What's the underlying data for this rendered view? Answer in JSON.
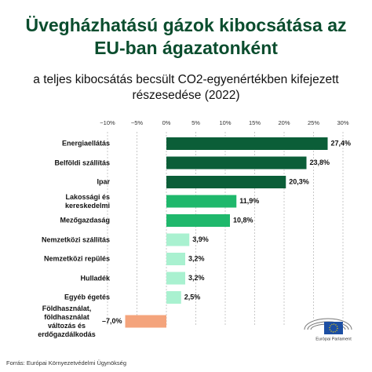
{
  "chart_data": {
    "type": "bar",
    "orientation": "horizontal",
    "title": "Üvegházhatású gázok kibocsátása az EU-ban ágazatonként",
    "subtitle": "a teljes kibocsátás becsült CO2-egyenértékben kifejezett részesedése (2022)",
    "categories": [
      "Energiaellátás",
      "Belföldi szállítás",
      "Ipar",
      "Lakossági és kereskedelmi",
      "Mezőgazdaság",
      "Nemzetközi szállítás",
      "Nemzetközi repülés",
      "Hulladék",
      "Egyéb égetés",
      "Földhasználat, földhasználat változás és erdőgazdálkodás"
    ],
    "values": [
      27.4,
      23.8,
      20.3,
      11.9,
      10.8,
      3.9,
      3.2,
      3.2,
      2.5,
      -7.0
    ],
    "value_labels": [
      "27,4%",
      "23,8%",
      "20,3%",
      "11,9%",
      "10,8%",
      "3,9%",
      "3,2%",
      "3,2%",
      "2,5%",
      "–7,0%"
    ],
    "colors": [
      "#0b5e38",
      "#0b5e38",
      "#0b5e38",
      "#1fb86c",
      "#1fb86c",
      "#a9f1d0",
      "#a9f1d0",
      "#a9f1d0",
      "#a9f1d0",
      "#f4a47c"
    ],
    "xlim": [
      -10,
      30
    ],
    "xticks": [
      {
        "value": -10,
        "label": "−10%"
      },
      {
        "value": -5,
        "label": "−5%"
      },
      {
        "value": 0,
        "label": "0%"
      },
      {
        "value": 5,
        "label": "5%"
      },
      {
        "value": 10,
        "label": "10%"
      },
      {
        "value": 15,
        "label": "15%"
      },
      {
        "value": 20,
        "label": "20%"
      },
      {
        "value": 25,
        "label": "25%"
      },
      {
        "value": 30,
        "label": "30%"
      }
    ],
    "grid": true,
    "source": "Forrás: Európai Környezetvédelmi Ügynökség",
    "logo_text": "Európai Parlament"
  }
}
